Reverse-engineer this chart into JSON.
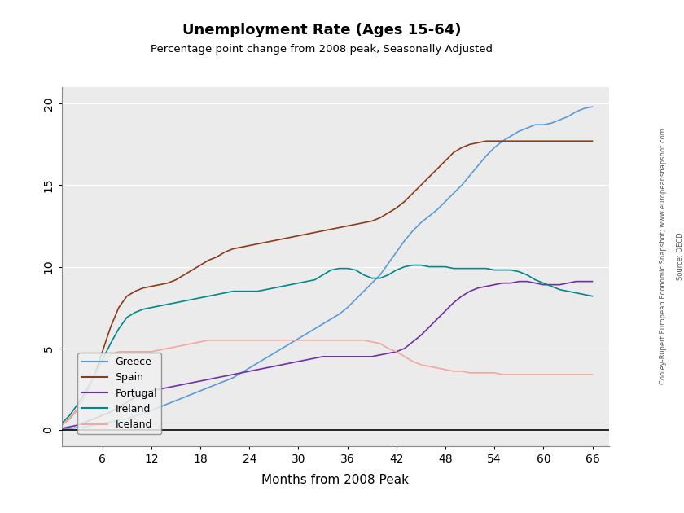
{
  "title": "Unemployment Rate (Ages 15-64)",
  "subtitle": "Percentage point change from 2008 peak, Seasonally Adjusted",
  "xlabel": "Months from 2008 Peak",
  "ylabel": "",
  "watermark_line1": "Cooley-Rupert European Economic Snapshot; www.europeansnapshot.com",
  "watermark_line2": "Source: OECD",
  "xlim": [
    1,
    68
  ],
  "ylim": [
    -1.0,
    21
  ],
  "xticks": [
    6,
    12,
    18,
    24,
    30,
    36,
    42,
    48,
    54,
    60,
    66
  ],
  "yticks": [
    0,
    5,
    10,
    15,
    20
  ],
  "plot_bg_color": "#ebebeb",
  "grid_color": "#ffffff",
  "series": {
    "Greece": {
      "color": "#5b9bd5",
      "x": [
        0,
        1,
        2,
        3,
        4,
        5,
        6,
        7,
        8,
        9,
        10,
        11,
        12,
        13,
        14,
        15,
        16,
        17,
        18,
        19,
        20,
        21,
        22,
        23,
        24,
        25,
        26,
        27,
        28,
        29,
        30,
        31,
        32,
        33,
        34,
        35,
        36,
        37,
        38,
        39,
        40,
        41,
        42,
        43,
        44,
        45,
        46,
        47,
        48,
        49,
        50,
        51,
        52,
        53,
        54,
        55,
        56,
        57,
        58,
        59,
        60,
        61,
        62,
        63,
        64,
        65,
        66
      ],
      "y": [
        0,
        0.05,
        0.1,
        0.15,
        0.2,
        0.3,
        0.4,
        0.5,
        0.6,
        0.7,
        0.85,
        1.0,
        1.2,
        1.4,
        1.6,
        1.8,
        2.0,
        2.2,
        2.4,
        2.6,
        2.8,
        3.0,
        3.2,
        3.5,
        3.8,
        4.1,
        4.4,
        4.7,
        5.0,
        5.3,
        5.6,
        5.9,
        6.2,
        6.5,
        6.8,
        7.1,
        7.5,
        8.0,
        8.5,
        9.0,
        9.5,
        10.2,
        10.9,
        11.6,
        12.2,
        12.7,
        13.1,
        13.5,
        14.0,
        14.5,
        15.0,
        15.6,
        16.2,
        16.8,
        17.3,
        17.7,
        18.0,
        18.3,
        18.5,
        18.7,
        18.7,
        18.8,
        19.0,
        19.2,
        19.5,
        19.7,
        19.8
      ]
    },
    "Spain": {
      "color": "#8B3A1A",
      "x": [
        0,
        1,
        2,
        3,
        4,
        5,
        6,
        7,
        8,
        9,
        10,
        11,
        12,
        13,
        14,
        15,
        16,
        17,
        18,
        19,
        20,
        21,
        22,
        23,
        24,
        25,
        26,
        27,
        28,
        29,
        30,
        31,
        32,
        33,
        34,
        35,
        36,
        37,
        38,
        39,
        40,
        41,
        42,
        43,
        44,
        45,
        46,
        47,
        48,
        49,
        50,
        51,
        52,
        53,
        54,
        55,
        56,
        57,
        58,
        59,
        60,
        61,
        62,
        63,
        64,
        65,
        66
      ],
      "y": [
        0,
        0.3,
        0.7,
        1.3,
        2.2,
        3.3,
        4.8,
        6.3,
        7.5,
        8.2,
        8.5,
        8.7,
        8.8,
        8.9,
        9.0,
        9.2,
        9.5,
        9.8,
        10.1,
        10.4,
        10.6,
        10.9,
        11.1,
        11.2,
        11.3,
        11.4,
        11.5,
        11.6,
        11.7,
        11.8,
        11.9,
        12.0,
        12.1,
        12.2,
        12.3,
        12.4,
        12.5,
        12.6,
        12.7,
        12.8,
        13.0,
        13.3,
        13.6,
        14.0,
        14.5,
        15.0,
        15.5,
        16.0,
        16.5,
        17.0,
        17.3,
        17.5,
        17.6,
        17.7,
        17.7,
        17.7,
        17.7,
        17.7,
        17.7,
        17.7,
        17.7,
        17.7,
        17.7,
        17.7,
        17.7,
        17.7,
        17.7
      ]
    },
    "Portugal": {
      "color": "#7030a0",
      "x": [
        0,
        1,
        2,
        3,
        4,
        5,
        6,
        7,
        8,
        9,
        10,
        11,
        12,
        13,
        14,
        15,
        16,
        17,
        18,
        19,
        20,
        21,
        22,
        23,
        24,
        25,
        26,
        27,
        28,
        29,
        30,
        31,
        32,
        33,
        34,
        35,
        36,
        37,
        38,
        39,
        40,
        41,
        42,
        43,
        44,
        45,
        46,
        47,
        48,
        49,
        50,
        51,
        52,
        53,
        54,
        55,
        56,
        57,
        58,
        59,
        60,
        61,
        62,
        63,
        64,
        65,
        66
      ],
      "y": [
        0,
        0.1,
        0.2,
        0.3,
        0.5,
        0.7,
        0.9,
        1.1,
        1.4,
        1.7,
        2.0,
        2.2,
        2.4,
        2.5,
        2.6,
        2.7,
        2.8,
        2.9,
        3.0,
        3.1,
        3.2,
        3.3,
        3.4,
        3.5,
        3.6,
        3.7,
        3.8,
        3.9,
        4.0,
        4.1,
        4.2,
        4.3,
        4.4,
        4.5,
        4.5,
        4.5,
        4.5,
        4.5,
        4.5,
        4.5,
        4.6,
        4.7,
        4.8,
        5.0,
        5.4,
        5.8,
        6.3,
        6.8,
        7.3,
        7.8,
        8.2,
        8.5,
        8.7,
        8.8,
        8.9,
        9.0,
        9.0,
        9.1,
        9.1,
        9.0,
        8.9,
        8.9,
        8.9,
        9.0,
        9.1,
        9.1,
        9.1
      ]
    },
    "Ireland": {
      "color": "#00868B",
      "x": [
        0,
        1,
        2,
        3,
        4,
        5,
        6,
        7,
        8,
        9,
        10,
        11,
        12,
        13,
        14,
        15,
        16,
        17,
        18,
        19,
        20,
        21,
        22,
        23,
        24,
        25,
        26,
        27,
        28,
        29,
        30,
        31,
        32,
        33,
        34,
        35,
        36,
        37,
        38,
        39,
        40,
        41,
        42,
        43,
        44,
        45,
        46,
        47,
        48,
        49,
        50,
        51,
        52,
        53,
        54,
        55,
        56,
        57,
        58,
        59,
        60,
        61,
        62,
        63,
        64,
        65,
        66
      ],
      "y": [
        0,
        0.4,
        0.9,
        1.6,
        2.4,
        3.3,
        4.3,
        5.3,
        6.2,
        6.9,
        7.2,
        7.4,
        7.5,
        7.6,
        7.7,
        7.8,
        7.9,
        8.0,
        8.1,
        8.2,
        8.3,
        8.4,
        8.5,
        8.5,
        8.5,
        8.5,
        8.6,
        8.7,
        8.8,
        8.9,
        9.0,
        9.1,
        9.2,
        9.5,
        9.8,
        9.9,
        9.9,
        9.8,
        9.5,
        9.3,
        9.3,
        9.5,
        9.8,
        10.0,
        10.1,
        10.1,
        10.0,
        10.0,
        10.0,
        9.9,
        9.9,
        9.9,
        9.9,
        9.9,
        9.8,
        9.8,
        9.8,
        9.7,
        9.5,
        9.2,
        9.0,
        8.8,
        8.6,
        8.5,
        8.4,
        8.3,
        8.2
      ]
    },
    "Iceland": {
      "color": "#f4a6a0",
      "x": [
        0,
        1,
        2,
        3,
        4,
        5,
        6,
        7,
        8,
        9,
        10,
        11,
        12,
        13,
        14,
        15,
        16,
        17,
        18,
        19,
        20,
        21,
        22,
        23,
        24,
        25,
        26,
        27,
        28,
        29,
        30,
        31,
        32,
        33,
        34,
        35,
        36,
        37,
        38,
        39,
        40,
        41,
        42,
        43,
        44,
        45,
        46,
        47,
        48,
        49,
        50,
        51,
        52,
        53,
        54,
        55,
        56,
        57,
        58,
        59,
        60,
        61,
        62,
        63,
        64,
        65,
        66
      ],
      "y": [
        0,
        0.3,
        0.7,
        1.3,
        2.2,
        3.3,
        4.2,
        4.6,
        4.8,
        4.8,
        4.8,
        4.8,
        4.8,
        4.9,
        5.0,
        5.1,
        5.2,
        5.3,
        5.4,
        5.5,
        5.5,
        5.5,
        5.5,
        5.5,
        5.5,
        5.5,
        5.5,
        5.5,
        5.5,
        5.5,
        5.5,
        5.5,
        5.5,
        5.5,
        5.5,
        5.5,
        5.5,
        5.5,
        5.5,
        5.4,
        5.3,
        5.0,
        4.8,
        4.5,
        4.2,
        4.0,
        3.9,
        3.8,
        3.7,
        3.6,
        3.6,
        3.5,
        3.5,
        3.5,
        3.5,
        3.4,
        3.4,
        3.4,
        3.4,
        3.4,
        3.4,
        3.4,
        3.4,
        3.4,
        3.4,
        3.4,
        3.4
      ]
    }
  }
}
